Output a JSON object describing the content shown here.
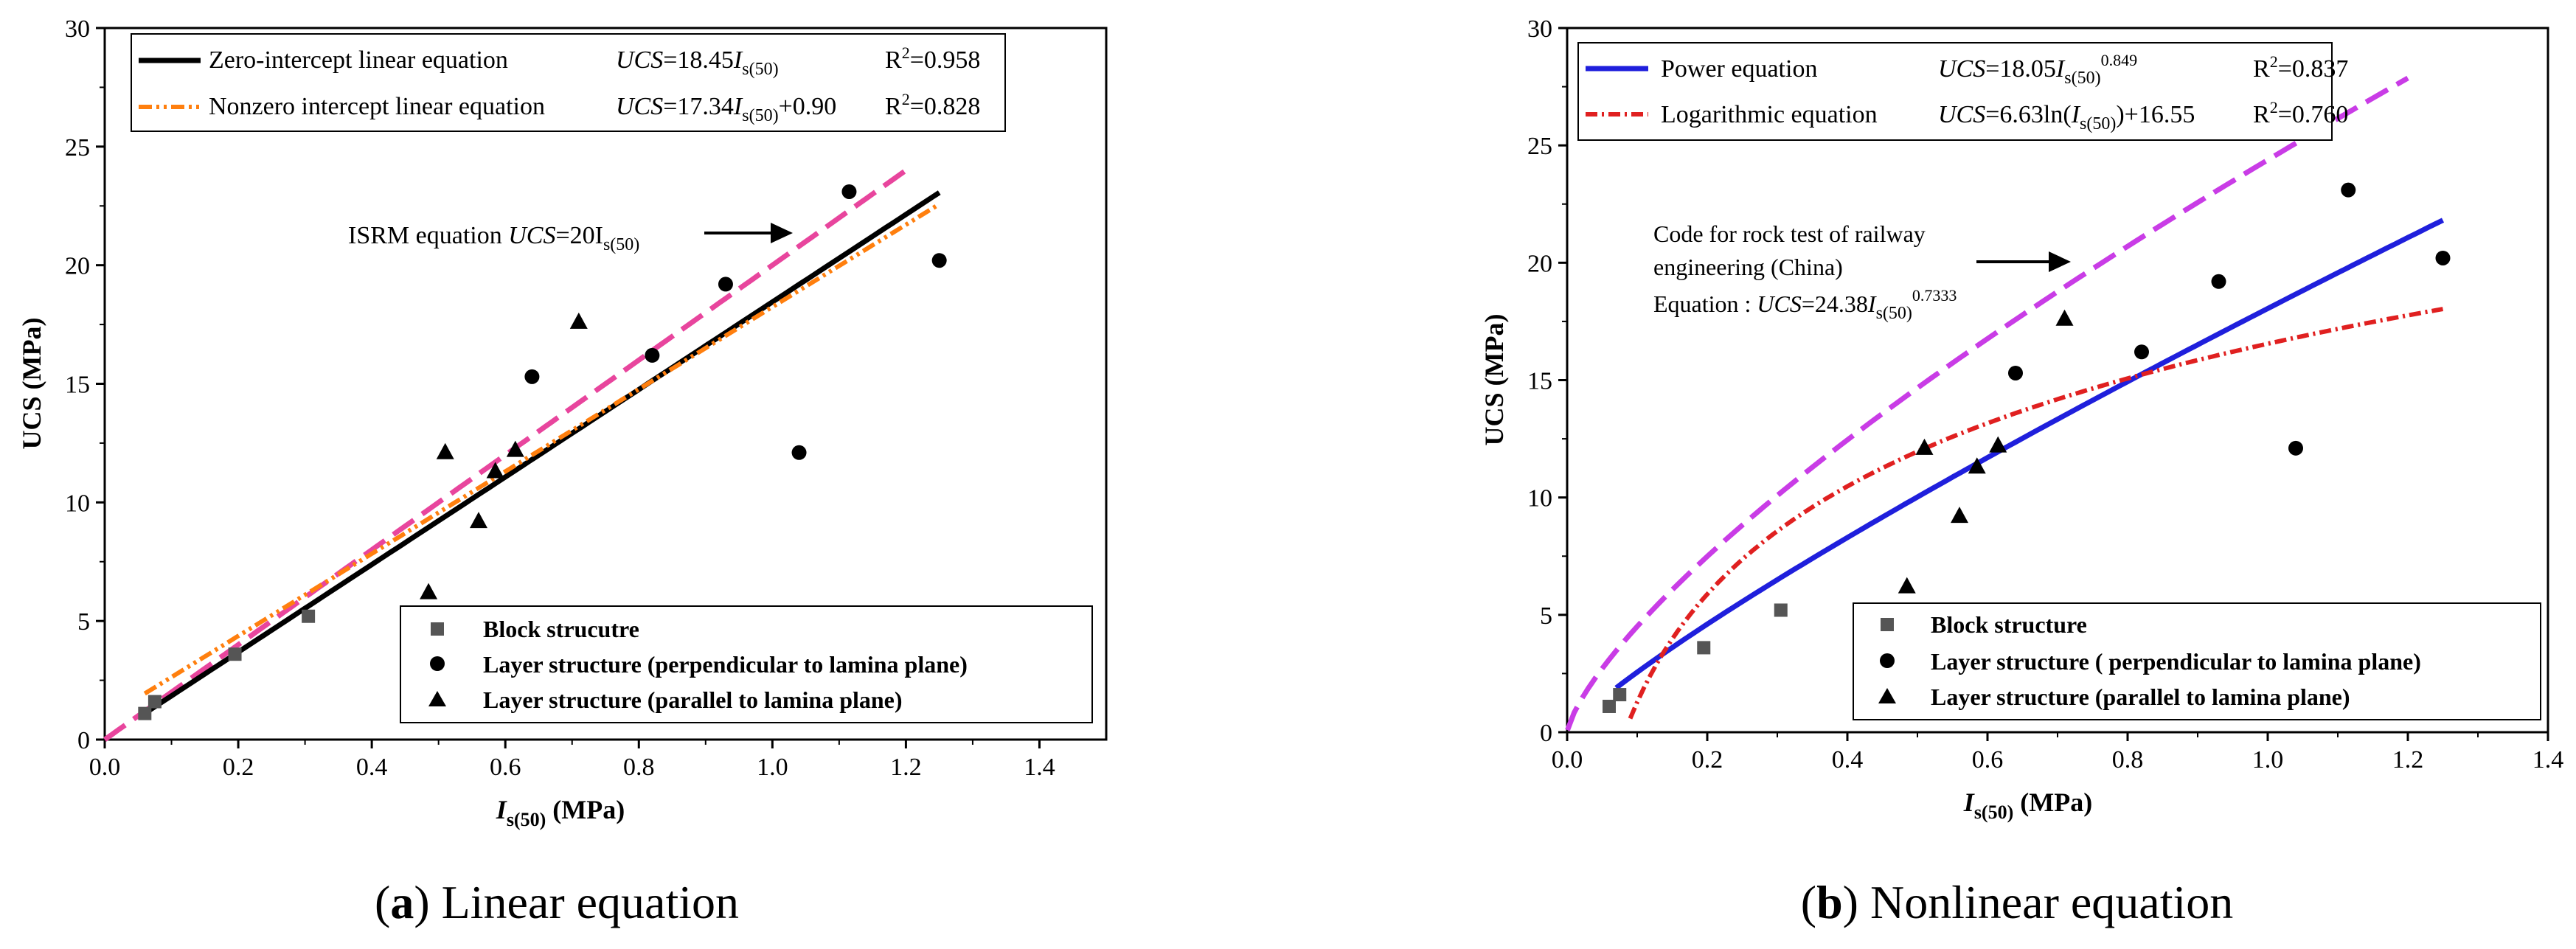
{
  "chart_data": [
    {
      "type": "scatter",
      "xlabel_main": "I",
      "xlabel_sub": "s(50)",
      "xlabel_unit": " (MPa)",
      "ylabel": "UCS (MPa)",
      "xlim": [
        0,
        1.5
      ],
      "ylim": [
        0,
        30
      ],
      "xticks": [
        "0.0",
        "0.2",
        "0.4",
        "0.6",
        "0.8",
        "1.0",
        "1.2",
        "1.4"
      ],
      "xtick_values": [
        0,
        0.2,
        0.4,
        0.6,
        0.8,
        1.0,
        1.2,
        1.4
      ],
      "yticks": [
        "0",
        "5",
        "10",
        "15",
        "20",
        "25",
        "30"
      ],
      "ytick_values": [
        0,
        5,
        10,
        15,
        20,
        25,
        30
      ],
      "caption_letter": "(a)",
      "caption_text": "Linear equation",
      "series": [
        {
          "name": "Block strucutre",
          "marker": "square",
          "color": "#555555",
          "x": [
            0.06,
            0.075,
            0.195,
            0.305
          ],
          "y": [
            1.1,
            1.6,
            3.6,
            5.2
          ]
        },
        {
          "name": "Layer structure (perpendicular to lamina plane)",
          "marker": "circle",
          "color": "#000000",
          "x": [
            0.64,
            0.82,
            0.93,
            1.04,
            1.115,
            1.25
          ],
          "y": [
            15.3,
            16.2,
            19.2,
            12.1,
            23.1,
            20.2
          ]
        },
        {
          "name": "Layer structure (parallel to lamina plane)",
          "marker": "triangle",
          "color": "#000000",
          "x": [
            0.485,
            0.51,
            0.56,
            0.585,
            0.615,
            0.71
          ],
          "y": [
            6.2,
            12.1,
            9.2,
            11.3,
            12.2,
            17.6
          ]
        }
      ],
      "fits": [
        {
          "name": "Zero-intercept linear equation",
          "kind": "linear",
          "a": 18.45,
          "b": 0,
          "x_range": [
            0.06,
            1.25
          ],
          "color": "#000000",
          "eq_main": "UCS",
          "eq_coef": "=18.45",
          "eq_var": "I",
          "eq_sub": "s(50)",
          "eq_tail": "",
          "r2": "=0.958"
        },
        {
          "name": "Nonzero intercept linear equation",
          "kind": "linear",
          "a": 17.34,
          "b": 0.9,
          "x_range": [
            0.06,
            1.25
          ],
          "color": "#ff7f0e",
          "eq_main": "UCS",
          "eq_coef": "=17.34",
          "eq_var": "I",
          "eq_sub": "s(50)",
          "eq_tail": "+0.90",
          "r2": "=0.828"
        },
        {
          "name": "ISRM equation",
          "kind": "linear",
          "a": 20,
          "b": 0,
          "x_range": [
            0,
            1.2
          ],
          "color": "#e8459d"
        }
      ],
      "annotation": {
        "prefix": "ISRM equation ",
        "eq_main": "UCS",
        "eq_coef": "=20I",
        "eq_sub": "s(50)"
      }
    },
    {
      "type": "scatter",
      "xlabel_main": "I",
      "xlabel_sub": "s(50)",
      "xlabel_unit": " (MPa)",
      "ylabel": "UCS (MPa)",
      "xlim": [
        0,
        1.4
      ],
      "ylim": [
        0,
        30
      ],
      "xticks": [
        "0.0",
        "0.2",
        "0.4",
        "0.6",
        "0.8",
        "1.0",
        "1.2",
        "1.4"
      ],
      "xtick_values": [
        0,
        0.2,
        0.4,
        0.6,
        0.8,
        1.0,
        1.2,
        1.4
      ],
      "yticks": [
        "0",
        "5",
        "10",
        "15",
        "20",
        "25",
        "30"
      ],
      "ytick_values": [
        0,
        5,
        10,
        15,
        20,
        25,
        30
      ],
      "caption_letter": "(b)",
      "caption_text": "Nonlinear equation",
      "series": [
        {
          "name": "Block structure",
          "marker": "square",
          "color": "#555555",
          "x": [
            0.06,
            0.075,
            0.195,
            0.305
          ],
          "y": [
            1.1,
            1.6,
            3.6,
            5.2
          ]
        },
        {
          "name": "Layer structure ( perpendicular to lamina plane)",
          "marker": "circle",
          "color": "#000000",
          "x": [
            0.64,
            0.82,
            0.93,
            1.04,
            1.115,
            1.25
          ],
          "y": [
            15.3,
            16.2,
            19.2,
            12.1,
            23.1,
            20.2
          ]
        },
        {
          "name": "Layer structure (parallel to lamina plane)",
          "marker": "triangle",
          "color": "#000000",
          "x": [
            0.485,
            0.51,
            0.56,
            0.585,
            0.615,
            0.71
          ],
          "y": [
            6.2,
            12.1,
            9.2,
            11.3,
            12.2,
            17.6
          ]
        }
      ],
      "fits": [
        {
          "name": "Power equation",
          "kind": "power",
          "a": 18.05,
          "b": 0.849,
          "x_range": [
            0.07,
            1.25
          ],
          "color": "#1f1fdc",
          "eq_main": "UCS",
          "eq_coef": "=18.05",
          "eq_var": "I",
          "eq_sub": "s(50)",
          "eq_sup": "0.849",
          "r2": "=0.837"
        },
        {
          "name": "Logarithmic equation",
          "kind": "log",
          "a": 6.63,
          "b": 16.55,
          "x_range": [
            0.09,
            1.25
          ],
          "color": "#e02020",
          "eq_main": "UCS",
          "eq_coef": "=6.63ln(",
          "eq_var": "I",
          "eq_sub": "s(50)",
          "eq_tail": ")+16.55",
          "r2": "=0.760"
        },
        {
          "name": "Code for rock test of railway engineering (China)",
          "kind": "power",
          "a": 24.38,
          "b": 0.7333,
          "x_range": [
            0,
            1.2
          ],
          "color": "#c93ce6"
        }
      ],
      "annotation": {
        "line1": "Code for rock test of railway",
        "line2": "engineering (China)",
        "line3_prefix": "Equation : ",
        "eq_main": "UCS",
        "eq_coef": "=24.38",
        "eq_var": "I",
        "eq_sub": "s(50)",
        "eq_sup": "0.7333"
      }
    }
  ]
}
